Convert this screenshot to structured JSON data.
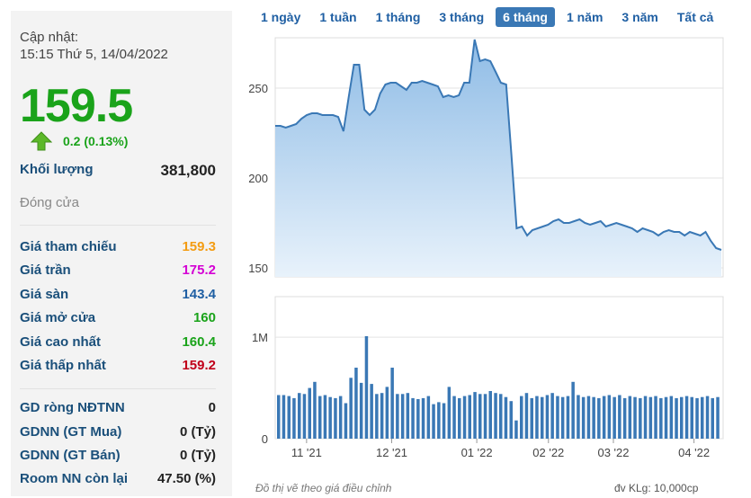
{
  "quote": {
    "updated_label": "Cập nhật:",
    "updated_time": "15:15 Thứ 5, 14/04/2022",
    "price": "159.5",
    "change": "0.2 (0.13%)",
    "volume_label": "Khối lượng",
    "volume_value": "381,800",
    "status": "Đóng cửa",
    "up_color": "#1aa31a"
  },
  "prices": [
    {
      "label": "Giá tham chiếu",
      "value": "159.3",
      "color": "#f39c12"
    },
    {
      "label": "Giá trần",
      "value": "175.2",
      "color": "#d400d4"
    },
    {
      "label": "Giá sàn",
      "value": "143.4",
      "color": "#1f5fa3"
    },
    {
      "label": "Giá mở cửa",
      "value": "160",
      "color": "#1aa31a"
    },
    {
      "label": "Giá cao nhất",
      "value": "160.4",
      "color": "#1aa31a"
    },
    {
      "label": "Giá thấp nhất",
      "value": "159.2",
      "color": "#c0001a"
    }
  ],
  "foreign": [
    {
      "label": "GD ròng NĐTNN",
      "value": "0"
    },
    {
      "label": "GDNN (GT Mua)",
      "value": "0 (Tỷ)"
    },
    {
      "label": "GDNN (GT Bán)",
      "value": "0 (Tỷ)"
    },
    {
      "label": "Room NN còn lại",
      "value": "47.50 (%)"
    }
  ],
  "tabs": [
    "1 ngày",
    "1 tuần",
    "1 tháng",
    "3 tháng",
    "6 tháng",
    "1 năm",
    "3 năm",
    "Tất cả"
  ],
  "active_tab": "6 tháng",
  "footer": {
    "note": "Đồ thị vẽ theo giá điều chỉnh",
    "unit": "đv KLg: 10,000cp"
  },
  "chart_data": {
    "type": "area",
    "x_tick_labels": [
      "11 '21",
      "12 '21",
      "01 '22",
      "02 '22",
      "03 '22",
      "04 '22"
    ],
    "price_axis": {
      "ticks": [
        150,
        200,
        250
      ],
      "ylim": [
        145,
        278
      ]
    },
    "volume_axis": {
      "ticks": [
        "0",
        "1M"
      ],
      "ylim": [
        0,
        1400000
      ]
    },
    "price_series": [
      229,
      229,
      228,
      229,
      230,
      233,
      235,
      236,
      236,
      235,
      235,
      235,
      234,
      226,
      245,
      263,
      263,
      238,
      235,
      238,
      247,
      252,
      253,
      253,
      251,
      249,
      253,
      253,
      254,
      253,
      252,
      251,
      245,
      246,
      245,
      246,
      253,
      253,
      277,
      265,
      266,
      265,
      259,
      253,
      252,
      213,
      172,
      173,
      168,
      171,
      172,
      173,
      174,
      176,
      177,
      175,
      175,
      176,
      177,
      175,
      174,
      175,
      176,
      173,
      174,
      175,
      174,
      173,
      172,
      170,
      172,
      171,
      170,
      168,
      170,
      171,
      170,
      170,
      168,
      170,
      169,
      168,
      170,
      165,
      161,
      160
    ],
    "volume_series": [
      430000,
      430000,
      420000,
      400000,
      450000,
      440000,
      500000,
      560000,
      420000,
      430000,
      410000,
      400000,
      420000,
      350000,
      600000,
      700000,
      550000,
      1010000,
      540000,
      440000,
      450000,
      510000,
      700000,
      440000,
      440000,
      450000,
      400000,
      390000,
      400000,
      420000,
      340000,
      360000,
      350000,
      510000,
      420000,
      400000,
      420000,
      430000,
      460000,
      440000,
      440000,
      470000,
      450000,
      440000,
      410000,
      370000,
      180000,
      420000,
      450000,
      400000,
      420000,
      410000,
      430000,
      450000,
      420000,
      410000,
      420000,
      560000,
      430000,
      410000,
      420000,
      410000,
      400000,
      420000,
      430000,
      410000,
      430000,
      400000,
      420000,
      410000,
      400000,
      420000,
      410000,
      420000,
      400000,
      410000,
      420000,
      400000,
      410000,
      420000,
      410000,
      400000,
      410000,
      420000,
      400000,
      410000
    ],
    "line_color": "#3a78b5",
    "fill_top": "#8fbce6",
    "fill_bottom": "#e8f2fb",
    "volume_color": "#3a78b5"
  }
}
